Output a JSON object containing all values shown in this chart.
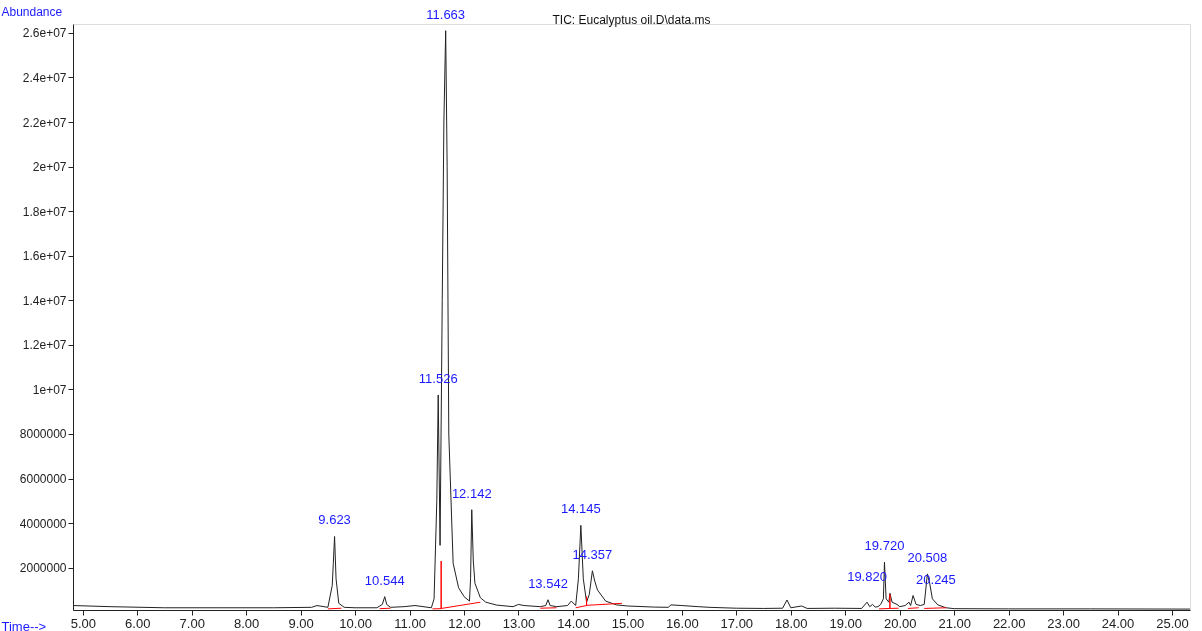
{
  "chart_data": {
    "type": "line",
    "title": "TIC: Eucalyptus oil.D\\data.ms",
    "xlabel": "Time-->",
    "ylabel": "Abundance",
    "xlim": [
      4.82,
      25.33
    ],
    "ylim": [
      100000,
      26400000
    ],
    "xticks": [
      {
        "value": 5,
        "label": "5.00"
      },
      {
        "value": 6,
        "label": "6.00"
      },
      {
        "value": 7,
        "label": "7.00"
      },
      {
        "value": 8,
        "label": "8.00"
      },
      {
        "value": 9,
        "label": "9.00"
      },
      {
        "value": 10,
        "label": "10.00"
      },
      {
        "value": 11,
        "label": "11.00"
      },
      {
        "value": 12,
        "label": "12.00"
      },
      {
        "value": 13,
        "label": "13.00"
      },
      {
        "value": 14,
        "label": "14.00"
      },
      {
        "value": 15,
        "label": "15.00"
      },
      {
        "value": 16,
        "label": "16.00"
      },
      {
        "value": 17,
        "label": "17.00"
      },
      {
        "value": 18,
        "label": "18.00"
      },
      {
        "value": 19,
        "label": "19.00"
      },
      {
        "value": 20,
        "label": "20.00"
      },
      {
        "value": 21,
        "label": "21.00"
      },
      {
        "value": 22,
        "label": "22.00"
      },
      {
        "value": 23,
        "label": "23.00"
      },
      {
        "value": 24,
        "label": "24.00"
      },
      {
        "value": 25,
        "label": "25.00"
      }
    ],
    "yticks": [
      2000000,
      4000000,
      6000000,
      8000000,
      {
        "value": 10000000,
        "label": "1e+07"
      },
      {
        "value": 12000000,
        "label": "1.2e+07"
      },
      {
        "value": 14000000,
        "label": "1.4e+07"
      },
      {
        "value": 16000000,
        "label": "1.6e+07"
      },
      {
        "value": 18000000,
        "label": "1.8e+07"
      },
      {
        "value": 20000000,
        "label": "2e+07"
      },
      {
        "value": 22000000,
        "label": "2.2e+07"
      },
      {
        "value": 24000000,
        "label": "2.4e+07"
      },
      {
        "value": 26000000,
        "label": "2.6e+07"
      }
    ],
    "grid": false,
    "marker": "none",
    "line_style": "solid",
    "series": [
      {
        "color": "#222222",
        "x": [
          4.82,
          5.5,
          6.5,
          7.5,
          8.5,
          9.2,
          9.3,
          9.5,
          9.58,
          9.6,
          9.623,
          9.65,
          9.7,
          9.8,
          10.0,
          10.4,
          10.5,
          10.544,
          10.58,
          10.65,
          10.9,
          11.1,
          11.4,
          11.45,
          11.5,
          11.526,
          11.56,
          11.6,
          11.63,
          11.663,
          11.69,
          11.72,
          11.8,
          11.9,
          12.0,
          12.1,
          12.12,
          12.142,
          12.17,
          12.2,
          12.3,
          12.4,
          12.6,
          12.9,
          13.0,
          13.1,
          13.4,
          13.5,
          13.542,
          13.58,
          13.7,
          13.9,
          13.97,
          14.05,
          14.1,
          14.145,
          14.19,
          14.25,
          14.3,
          14.357,
          14.4,
          14.45,
          14.6,
          14.8,
          15.0,
          15.5,
          15.75,
          15.8,
          16.0,
          16.3,
          16.5,
          17.0,
          17.5,
          17.85,
          17.93,
          18.0,
          18.2,
          18.3,
          18.8,
          19.3,
          19.4,
          19.45,
          19.5,
          19.55,
          19.6,
          19.65,
          19.7,
          19.72,
          19.75,
          19.8,
          19.82,
          19.86,
          19.95,
          20.0,
          20.1,
          20.17,
          20.2,
          20.245,
          20.3,
          20.38,
          20.45,
          20.508,
          20.55,
          20.6,
          20.7,
          20.85,
          21.0,
          22.0,
          23.5,
          25.33
        ],
        "values": [
          300000,
          250000,
          200000,
          200000,
          200000,
          220000,
          300000,
          220000,
          1200000,
          2200000,
          3400000,
          1500000,
          400000,
          220000,
          200000,
          200000,
          350000,
          700000,
          350000,
          220000,
          250000,
          300000,
          200000,
          600000,
          5000000,
          9750000,
          3000000,
          14000000,
          22000000,
          26100000,
          20000000,
          8000000,
          2200000,
          1100000,
          700000,
          500000,
          1500000,
          4600000,
          2300000,
          1300000,
          650000,
          450000,
          320000,
          250000,
          350000,
          300000,
          250000,
          300000,
          560000,
          300000,
          250000,
          300000,
          500000,
          300000,
          1500000,
          3900000,
          1500000,
          450000,
          800000,
          1860000,
          1400000,
          1000000,
          500000,
          330000,
          280000,
          230000,
          220000,
          330000,
          300000,
          250000,
          220000,
          180000,
          170000,
          180000,
          550000,
          200000,
          280000,
          170000,
          180000,
          170000,
          450000,
          250000,
          350000,
          230000,
          250000,
          350000,
          600000,
          2250000,
          600000,
          450000,
          850000,
          450000,
          350000,
          250000,
          300000,
          450000,
          300000,
          750000,
          350000,
          300000,
          350000,
          1720000,
          1300000,
          600000,
          330000,
          200000,
          160000,
          150000,
          150000,
          140000
        ]
      },
      {
        "color": "#ff0000",
        "x": [
          9.5,
          9.75,
          9.76,
          10.45,
          10.65,
          10.66,
          11.42,
          11.58,
          11.58,
          11.58,
          11.585,
          12.3,
          12.31,
          13.4,
          13.7,
          13.71,
          14.05,
          14.25,
          14.25,
          14.25,
          14.255,
          14.9,
          14.91,
          19.62,
          19.82,
          19.82,
          19.82,
          19.825,
          19.98,
          19.99,
          20.15,
          20.35,
          20.36,
          20.45,
          20.85
        ],
        "values": [
          150000,
          180000,
          null,
          160000,
          180000,
          null,
          150000,
          160000,
          2300000,
          160000,
          170000,
          450000,
          null,
          180000,
          200000,
          null,
          200000,
          300000,
          700000,
          300000,
          310000,
          400000,
          null,
          150000,
          170000,
          800000,
          170000,
          170000,
          180000,
          null,
          170000,
          200000,
          null,
          170000,
          200000
        ]
      }
    ],
    "annotations": [
      {
        "text": "9.623",
        "x": 9.623,
        "y": 3400000
      },
      {
        "text": "10.544",
        "x": 10.544,
        "y": 700000
      },
      {
        "text": "11.526",
        "x": 11.526,
        "y": 9750000
      },
      {
        "text": "11.663",
        "x": 11.663,
        "y": 26100000
      },
      {
        "text": "12.142",
        "x": 12.142,
        "y": 4600000
      },
      {
        "text": "13.542",
        "x": 13.542,
        "y": 560000
      },
      {
        "text": "14.145",
        "x": 14.145,
        "y": 3900000
      },
      {
        "text": "14.357",
        "x": 14.357,
        "y": 1860000
      },
      {
        "text": "19.720",
        "x": 19.72,
        "y": 2250000
      },
      {
        "text": "19.820",
        "x": 19.82,
        "y": 850000
      },
      {
        "text": "20.245",
        "x": 20.245,
        "y": 750000
      },
      {
        "text": "20.508",
        "x": 20.508,
        "y": 1720000
      }
    ]
  }
}
